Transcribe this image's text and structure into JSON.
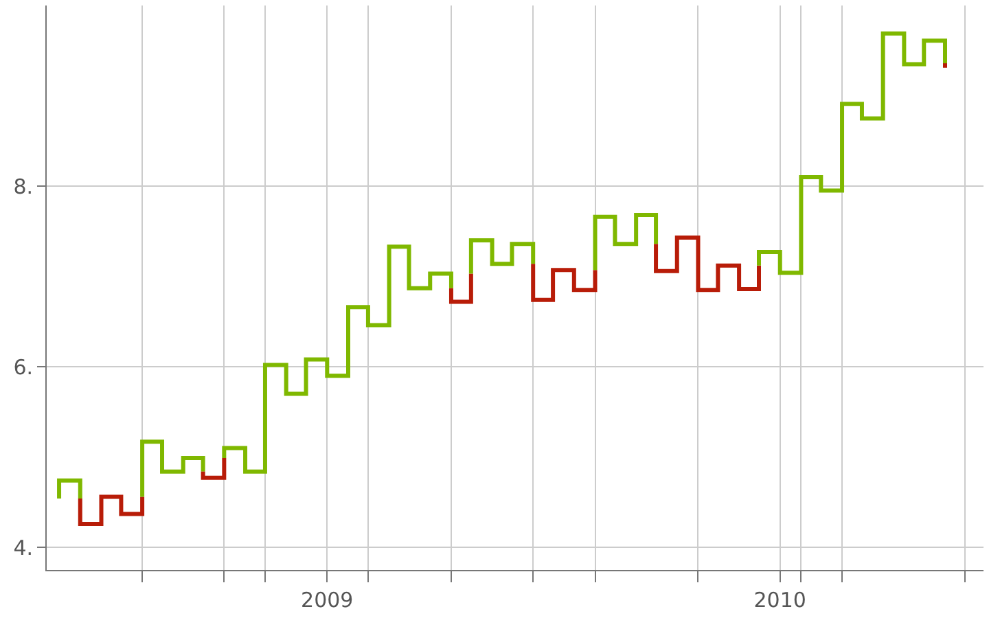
{
  "chart_data": {
    "type": "line",
    "marker": "none",
    "line_style": "solid",
    "grid": true,
    "xlim": [
      "2008-05-20",
      "2010-06-14"
    ],
    "ylim": [
      3.75,
      10.0
    ],
    "xticks": [
      {
        "value": "2008-08-05",
        "label": null
      },
      {
        "value": "2008-10-10",
        "label": null
      },
      {
        "value": "2008-11-12",
        "label": null
      },
      {
        "value": "2009",
        "label": "2009"
      },
      {
        "value": "2009-02-03",
        "label": null
      },
      {
        "value": "2009-04-11",
        "label": null
      },
      {
        "value": "2009-06-16",
        "label": null
      },
      {
        "value": "2009-08-05",
        "label": null
      },
      {
        "value": "2009-10-27",
        "label": null
      },
      {
        "value": "2010",
        "label": "2010"
      },
      {
        "value": "2010-01-18",
        "label": null
      },
      {
        "value": "2010-02-20",
        "label": null
      },
      {
        "value": "2010-05-30",
        "label": null
      }
    ],
    "yticks": [
      {
        "value": 4,
        "label": "4."
      },
      {
        "value": 6,
        "label": "6."
      },
      {
        "value": 8,
        "label": "8."
      }
    ],
    "series": [
      {
        "color": "#7fb800",
        "x": [
          "2008-05-30",
          "2008-05-30",
          "2008-06-16",
          "2008-06-16"
        ],
        "values": [
          4.54,
          4.74,
          4.74,
          4.54
        ]
      },
      {
        "color": "#b81c08",
        "x": [
          "2008-06-16",
          "2008-06-16",
          "2008-07-03",
          "2008-07-03",
          "2008-07-19",
          "2008-07-19",
          "2008-08-05",
          "2008-08-05"
        ],
        "values": [
          4.54,
          4.26,
          4.26,
          4.56,
          4.56,
          4.37,
          4.37,
          4.56
        ]
      },
      {
        "color": "#7fb800",
        "x": [
          "2008-08-05",
          "2008-08-05",
          "2008-08-21",
          "2008-08-21",
          "2008-09-07",
          "2008-09-07",
          "2008-09-23",
          "2008-09-23"
        ],
        "values": [
          4.56,
          5.17,
          5.17,
          4.84,
          4.84,
          4.99,
          4.99,
          4.84
        ]
      },
      {
        "color": "#b81c08",
        "x": [
          "2008-09-23",
          "2008-09-23",
          "2008-10-10",
          "2008-10-10"
        ],
        "values": [
          4.84,
          4.77,
          4.77,
          4.99
        ]
      },
      {
        "color": "#7fb800",
        "x": [
          "2008-10-10",
          "2008-10-10",
          "2008-10-27",
          "2008-10-27",
          "2008-11-12",
          "2008-11-12",
          "2008-11-29",
          "2008-11-29",
          "2008-12-15",
          "2008-12-15",
          "2009-01-01",
          "2009-01-01",
          "2009-01-18",
          "2009-01-18",
          "2009-02-03",
          "2009-02-03",
          "2009-02-20",
          "2009-02-20",
          "2009-03-08",
          "2009-03-08",
          "2009-03-25",
          "2009-03-25",
          "2009-04-11",
          "2009-04-11"
        ],
        "values": [
          4.99,
          5.1,
          5.1,
          4.84,
          4.84,
          6.02,
          6.02,
          5.7,
          5.7,
          6.08,
          6.08,
          5.9,
          5.9,
          6.66,
          6.66,
          6.46,
          6.46,
          7.33,
          7.33,
          6.87,
          6.87,
          7.03,
          7.03,
          6.87
        ]
      },
      {
        "color": "#b81c08",
        "x": [
          "2009-04-11",
          "2009-04-11",
          "2009-04-27",
          "2009-04-27"
        ],
        "values": [
          6.87,
          6.72,
          6.72,
          7.03
        ]
      },
      {
        "color": "#7fb800",
        "x": [
          "2009-04-27",
          "2009-04-27",
          "2009-05-14",
          "2009-05-14",
          "2009-05-30",
          "2009-05-30",
          "2009-06-16",
          "2009-06-16"
        ],
        "values": [
          7.03,
          7.4,
          7.4,
          7.14,
          7.14,
          7.36,
          7.36,
          7.14
        ]
      },
      {
        "color": "#b81c08",
        "x": [
          "2009-06-16",
          "2009-06-16",
          "2009-07-02",
          "2009-07-02",
          "2009-07-19",
          "2009-07-19",
          "2009-08-05",
          "2009-08-05"
        ],
        "values": [
          7.14,
          6.74,
          6.74,
          7.07,
          7.07,
          6.85,
          6.85,
          7.07
        ]
      },
      {
        "color": "#7fb800",
        "x": [
          "2009-08-05",
          "2009-08-05",
          "2009-08-21",
          "2009-08-21",
          "2009-09-07",
          "2009-09-07",
          "2009-09-23",
          "2009-09-23"
        ],
        "values": [
          7.07,
          7.66,
          7.66,
          7.36,
          7.36,
          7.68,
          7.68,
          7.36
        ]
      },
      {
        "color": "#b81c08",
        "x": [
          "2009-09-23",
          "2009-09-23",
          "2009-10-10",
          "2009-10-10",
          "2009-10-27",
          "2009-10-27",
          "2009-11-12",
          "2009-11-12",
          "2009-11-29",
          "2009-11-29",
          "2009-12-15",
          "2009-12-15"
        ],
        "values": [
          7.36,
          7.06,
          7.06,
          7.43,
          7.43,
          6.85,
          6.85,
          7.12,
          7.12,
          6.86,
          6.86,
          7.12
        ]
      },
      {
        "color": "#7fb800",
        "x": [
          "2009-12-15",
          "2009-12-15",
          "2010-01-01",
          "2010-01-01",
          "2010-01-18",
          "2010-01-18",
          "2010-02-03",
          "2010-02-03",
          "2010-02-20",
          "2010-02-20",
          "2010-03-08",
          "2010-03-08",
          "2010-03-25",
          "2010-03-25",
          "2010-04-11",
          "2010-04-11",
          "2010-04-27",
          "2010-04-27",
          "2010-05-14",
          "2010-05-14"
        ],
        "values": [
          7.12,
          7.27,
          7.27,
          7.04,
          7.04,
          8.1,
          8.1,
          7.95,
          7.95,
          8.91,
          8.91,
          8.75,
          8.75,
          9.69,
          9.69,
          9.35,
          9.35,
          9.61,
          9.61,
          9.35
        ]
      },
      {
        "color": "#b81c08",
        "x": [
          "2010-05-14",
          "2010-05-14"
        ],
        "values": [
          9.36,
          9.31
        ]
      }
    ]
  }
}
